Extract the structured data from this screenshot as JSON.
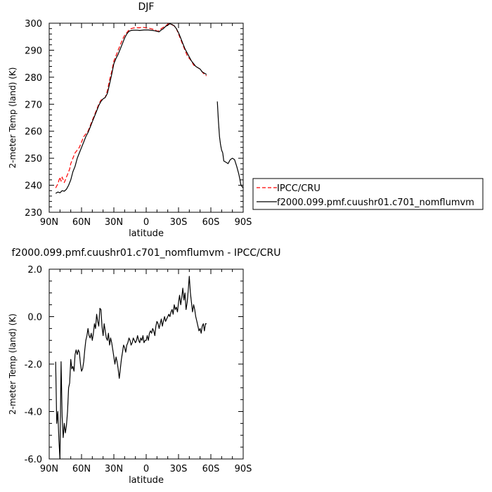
{
  "chart_data": [
    {
      "type": "line",
      "title": "DJF",
      "xlabel": "latitude",
      "ylabel": "2-meter Temp (land) (K)",
      "xlim": [
        90,
        -90
      ],
      "ylim": [
        230,
        300
      ],
      "xticks": [
        90,
        60,
        30,
        0,
        -30,
        -60,
        -90
      ],
      "xtick_labels": [
        "90N",
        "60N",
        "30N",
        "0",
        "30S",
        "60S",
        "90S"
      ],
      "yticks": [
        230,
        240,
        250,
        260,
        270,
        280,
        290,
        300
      ],
      "ytick_labels": [
        "230",
        "240",
        "250",
        "260",
        "270",
        "280",
        "290",
        "300"
      ],
      "legend": {
        "placement": "right-outside",
        "entries": [
          "IPCC/CRU",
          "f2000.099.pmf.cuushr01.c701_nomflumvm"
        ]
      },
      "series": [
        {
          "name": "IPCC/CRU",
          "color": "#ff0000",
          "dash": true,
          "x": [
            84,
            82,
            80,
            79,
            78,
            77,
            76,
            75,
            74,
            73,
            72,
            71,
            70,
            68,
            66,
            64,
            62,
            60,
            58,
            56,
            54,
            52,
            50,
            48,
            46,
            44,
            42,
            40,
            38,
            36,
            34,
            32,
            30,
            28,
            26,
            24,
            22,
            20,
            18,
            16,
            14,
            12,
            10,
            8,
            6,
            4,
            2,
            0,
            -2,
            -4,
            -6,
            -8,
            -10,
            -12,
            -14,
            -16,
            -18,
            -20,
            -22,
            -24,
            -26,
            -28,
            -30,
            -32,
            -34,
            -36,
            -38,
            -40,
            -42,
            -44,
            -46,
            -48,
            -50,
            -52,
            -54,
            -56
          ],
          "y": [
            239,
            240.5,
            243,
            241.5,
            243,
            242,
            241,
            242,
            243,
            244,
            245,
            246,
            248,
            250,
            252,
            253,
            254,
            256,
            258,
            259,
            260,
            262,
            264,
            266,
            268,
            270,
            271.5,
            272,
            272.5,
            275,
            279,
            282,
            286,
            288,
            290,
            292,
            294,
            295.5,
            296.5,
            297.5,
            298,
            298.2,
            298.3,
            298.3,
            298.3,
            298.5,
            298.4,
            298.2,
            298.2,
            298,
            297.8,
            297.6,
            297,
            297.2,
            298,
            298.5,
            299,
            299.6,
            299.8,
            299.4,
            299,
            298,
            296,
            294,
            292,
            290,
            288,
            287,
            286,
            284.5,
            284,
            283.5,
            283,
            282,
            281,
            280.5
          ]
        },
        {
          "name": "f2000.099.pmf.cuushr01.c701_nomflumvm",
          "color": "#000000",
          "dash": false,
          "x": [
            84,
            82,
            80,
            78,
            76,
            74,
            72,
            70,
            68,
            66,
            64,
            62,
            60,
            58,
            56,
            54,
            52,
            50,
            48,
            46,
            44,
            42,
            40,
            38,
            36,
            34,
            32,
            30,
            28,
            26,
            24,
            22,
            20,
            18,
            16,
            14,
            12,
            10,
            8,
            6,
            4,
            2,
            0,
            -2,
            -4,
            -6,
            -8,
            -10,
            -12,
            -14,
            -16,
            -18,
            -20,
            -22,
            -24,
            -26,
            -28,
            -30,
            -32,
            -34,
            -36,
            -38,
            -40,
            -42,
            -44,
            -46,
            -48,
            -50,
            -52,
            -54,
            -56
          ],
          "y": [
            237,
            237.5,
            237.2,
            238,
            237.8,
            238.5,
            240,
            242,
            245,
            247,
            250,
            252,
            254,
            256,
            258,
            259.5,
            261.5,
            263.5,
            265.5,
            267.5,
            269.5,
            271,
            272,
            272.5,
            274,
            277.5,
            281,
            285,
            287,
            288.5,
            290.5,
            292.5,
            294.5,
            296,
            297,
            297.3,
            297.4,
            297.4,
            297.4,
            297.3,
            297.4,
            297.5,
            297.5,
            297.5,
            297.4,
            297.3,
            297.2,
            297,
            296.8,
            297.5,
            298,
            298.8,
            299.3,
            299.8,
            299.5,
            299,
            298,
            296.5,
            294.5,
            292.5,
            290.5,
            289,
            287.5,
            286,
            285,
            284,
            283.5,
            283,
            282,
            281.5,
            281
          ]
        },
        {
          "name": "f2000.099.pmf.cuushr01.c701_nomflumvm",
          "color": "#000000",
          "dash": false,
          "x": [
            -66,
            -67,
            -68,
            -69,
            -70,
            -71,
            -72,
            -74,
            -76,
            -78,
            -80,
            -82,
            -84,
            -86,
            -88,
            -90
          ],
          "y": [
            271,
            264,
            258,
            255,
            253,
            252,
            249,
            248.5,
            248,
            249.5,
            250,
            249.5,
            247,
            244,
            240,
            239
          ]
        }
      ]
    },
    {
      "type": "line",
      "title": "f2000.099.pmf.cuushr01.c701_nomflumvm - IPCC/CRU",
      "xlabel": "latitude",
      "ylabel": "2-meter Temp (land) (K)",
      "xlim": [
        90,
        -90
      ],
      "ylim": [
        -6,
        2
      ],
      "xticks": [
        90,
        60,
        30,
        0,
        -30,
        -60,
        -90
      ],
      "xtick_labels": [
        "90N",
        "60N",
        "30N",
        "0",
        "30S",
        "60S",
        "90S"
      ],
      "yticks": [
        -6,
        -4,
        -2,
        0,
        2
      ],
      "ytick_labels": [
        "-6.0",
        "-4.0",
        "-2.0",
        "0.0",
        "2.0"
      ],
      "series": [
        {
          "color": "#000000",
          "dash": false,
          "x": [
            84,
            83,
            82,
            81,
            80,
            79,
            78,
            77,
            76,
            75,
            74,
            73,
            72,
            71,
            70,
            69,
            68,
            67,
            66,
            65,
            64,
            63,
            62,
            61,
            60,
            59,
            58,
            57,
            56,
            55,
            54,
            53,
            52,
            51,
            50,
            49,
            48,
            47,
            46,
            45,
            44,
            43,
            42,
            41,
            40,
            39,
            38,
            37,
            36,
            35,
            34,
            33,
            32,
            31,
            30,
            29,
            28,
            27,
            26,
            25,
            24,
            23,
            22,
            21,
            20,
            19,
            18,
            17,
            16,
            15,
            14,
            13,
            12,
            11,
            10,
            9,
            8,
            7,
            6,
            5,
            4,
            3,
            2,
            1,
            0,
            -1,
            -2,
            -3,
            -4,
            -5,
            -6,
            -7,
            -8,
            -9,
            -10,
            -11,
            -12,
            -13,
            -14,
            -15,
            -16,
            -17,
            -18,
            -19,
            -20,
            -21,
            -22,
            -23,
            -24,
            -25,
            -26,
            -27,
            -28,
            -29,
            -30,
            -31,
            -32,
            -33,
            -34,
            -35,
            -36,
            -37,
            -38,
            -39,
            -40,
            -41,
            -42,
            -43,
            -44,
            -45,
            -46,
            -47,
            -48,
            -49,
            -50,
            -51,
            -52,
            -53,
            -54,
            -55,
            -56
          ],
          "y": [
            -1.9,
            -4.5,
            -4.0,
            -5.2,
            -6.0,
            -1.9,
            -4.2,
            -5.1,
            -4.5,
            -4.9,
            -4.6,
            -4.0,
            -3.0,
            -2.8,
            -1.8,
            -2.2,
            -2.1,
            -2.3,
            -1.6,
            -1.4,
            -1.6,
            -1.4,
            -1.5,
            -2.0,
            -2.3,
            -2.2,
            -1.9,
            -1.4,
            -1.0,
            -0.8,
            -0.5,
            -0.8,
            -0.9,
            -0.7,
            -1.0,
            -0.7,
            -0.3,
            -0.5,
            0.1,
            -0.2,
            -0.4,
            0.35,
            0.3,
            -0.4,
            -0.8,
            -0.3,
            -0.6,
            -0.9,
            -1.0,
            -0.7,
            -1.2,
            -0.9,
            -1.1,
            -1.4,
            -1.7,
            -2.0,
            -1.7,
            -1.9,
            -2.2,
            -2.6,
            -2.2,
            -1.8,
            -1.5,
            -1.2,
            -1.3,
            -1.5,
            -1.2,
            -1.1,
            -0.9,
            -1.0,
            -1.2,
            -1.1,
            -0.9,
            -1.0,
            -1.1,
            -1.0,
            -0.8,
            -1.0,
            -1.1,
            -0.9,
            -1.0,
            -0.8,
            -1.1,
            -1.0,
            -1.0,
            -0.8,
            -1.0,
            -0.7,
            -0.6,
            -0.7,
            -0.5,
            -0.6,
            -0.8,
            -0.4,
            -0.2,
            -0.3,
            -0.5,
            -0.3,
            -0.1,
            -0.4,
            -0.2,
            0.0,
            -0.2,
            -0.1,
            0.0,
            0.1,
            0.0,
            0.2,
            0.3,
            0.1,
            0.5,
            0.3,
            0.4,
            0.2,
            0.6,
            0.9,
            0.5,
            0.8,
            1.2,
            0.7,
            1.0,
            0.3,
            0.6,
            1.1,
            1.7,
            1.0,
            0.6,
            0.2,
            0.5,
            0.3,
            0.0,
            -0.2,
            -0.4,
            -0.6,
            -0.5,
            -0.7,
            -0.4,
            -0.3,
            -0.6,
            -0.3,
            -0.3
          ]
        }
      ]
    }
  ]
}
